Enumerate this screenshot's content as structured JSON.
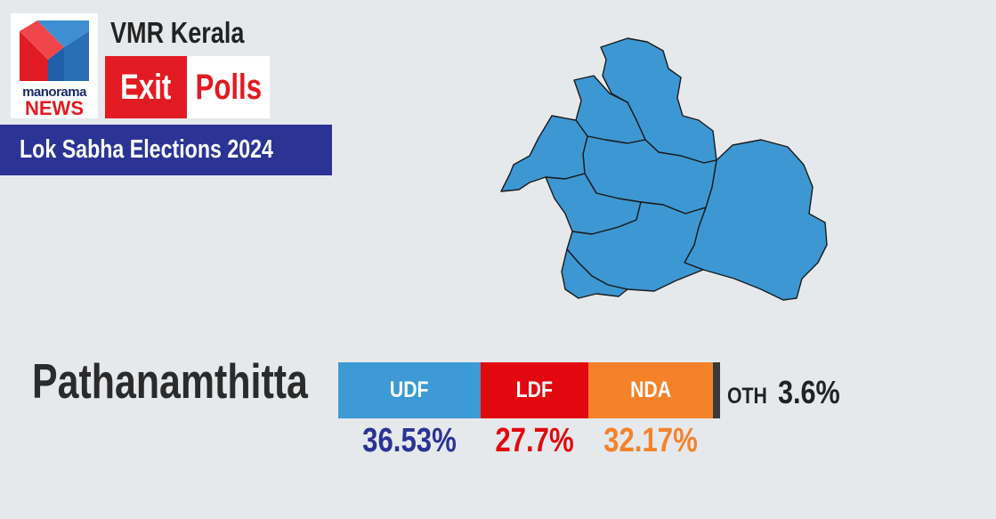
{
  "branding": {
    "logo_line1": "manorama",
    "logo_line2": "NEWS",
    "header_title": "VMR Kerala",
    "exit_label": "Exit",
    "polls_label": "Polls",
    "banner_text": "Lok Sabha Elections 2024"
  },
  "colors": {
    "background": "#e6e9ec",
    "banner": "#2b3394",
    "brand_red": "#e21b22",
    "map_fill": "#3d97d3"
  },
  "chart_data": {
    "type": "bar",
    "orientation": "horizontal-stacked",
    "title": "Pathanamthitta",
    "series": [
      {
        "name": "UDF",
        "value": 36.53,
        "label": "36.53%",
        "color": "#3d9ad5",
        "label_color": "#2b3394"
      },
      {
        "name": "LDF",
        "value": 27.7,
        "label": "27.7%",
        "color": "#e3080f",
        "label_color": "#e3080f"
      },
      {
        "name": "NDA",
        "value": 32.17,
        "label": "32.17%",
        "color": "#f5822a",
        "label_color": "#f5822a"
      },
      {
        "name": "OTH",
        "value": 3.6,
        "label": "3.6%",
        "color": "#3a3a3a",
        "label_color": "#222222"
      }
    ]
  }
}
